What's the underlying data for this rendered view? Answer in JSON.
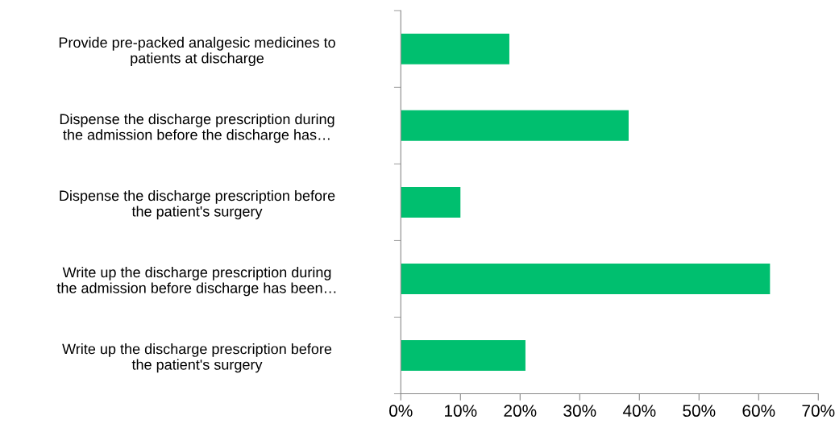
{
  "chart_data": {
    "type": "bar",
    "orientation": "horizontal",
    "categories": [
      "Provide pre-packed analgesic medicines to\npatients at discharge",
      "Dispense the discharge prescription during\nthe admission before the discharge has…",
      "Dispense the discharge prescription before\nthe patient's surgery",
      "Write up the discharge prescription during\nthe admission before discharge has been…",
      "Write up the discharge prescription before\nthe patient's surgery"
    ],
    "values": [
      18.2,
      38.2,
      10.0,
      61.9,
      20.9
    ],
    "color": "#00bf6f",
    "xlim": [
      0,
      70
    ],
    "xticks": [
      {
        "value": 0,
        "label": "0%"
      },
      {
        "value": 10,
        "label": "10%"
      },
      {
        "value": 20,
        "label": "20%"
      },
      {
        "value": 30,
        "label": "30%"
      },
      {
        "value": 40,
        "label": "40%"
      },
      {
        "value": 50,
        "label": "50%"
      },
      {
        "value": 60,
        "label": "60%"
      },
      {
        "value": 70,
        "label": "70%"
      }
    ],
    "grid": false,
    "legend": false
  }
}
